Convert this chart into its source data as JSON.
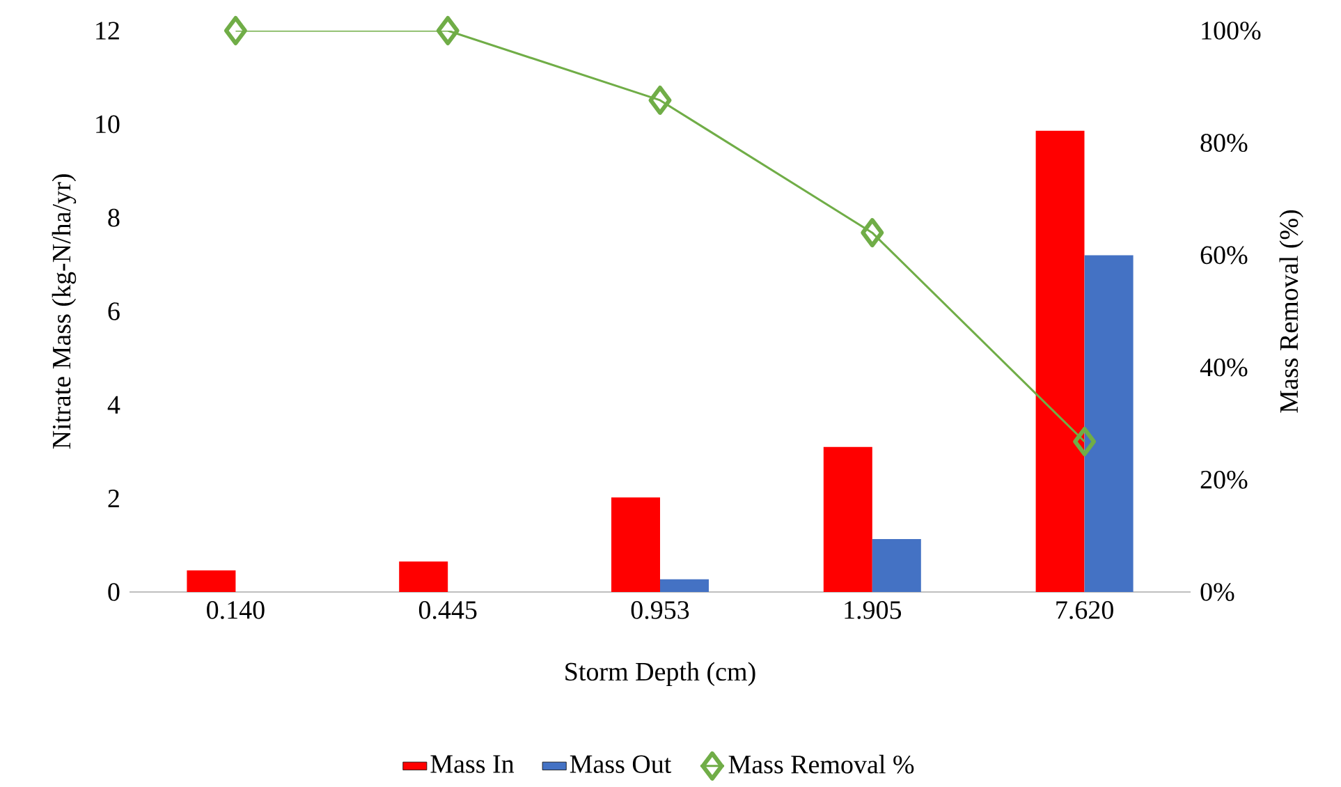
{
  "chart_data": {
    "type": "bar",
    "xlabel": "Storm Depth (cm)",
    "ylabel": "Nitrate Mass (kg-N/ha/yr)",
    "y2label": "Mass Removal (%)",
    "categories": [
      "0.140",
      "0.445",
      "0.953",
      "1.905",
      "7.620"
    ],
    "ylim": [
      0,
      12
    ],
    "yticks": [
      0,
      2,
      4,
      6,
      8,
      10,
      12
    ],
    "y2lim": [
      0,
      100
    ],
    "y2ticks": [
      {
        "value": 0,
        "label": "0%"
      },
      {
        "value": 20,
        "label": "20%"
      },
      {
        "value": 40,
        "label": "40%"
      },
      {
        "value": 60,
        "label": "60%"
      },
      {
        "value": 80,
        "label": "80%"
      },
      {
        "value": 100,
        "label": "100%"
      }
    ],
    "legend": "bottom",
    "series": [
      {
        "name": "Mass In",
        "color": "#ff0000",
        "values": [
          0.46,
          0.65,
          2.02,
          3.1,
          9.86
        ]
      },
      {
        "name": "Mass Out",
        "color": "#4472c4",
        "values": [
          0,
          0,
          0.27,
          1.13,
          7.2
        ]
      },
      {
        "name": "Mass Removal %",
        "type": "line",
        "axis": "y2",
        "marker": "diamond",
        "color": "#70ad47",
        "values": [
          100,
          100,
          87.6,
          64,
          26.8
        ]
      }
    ]
  }
}
